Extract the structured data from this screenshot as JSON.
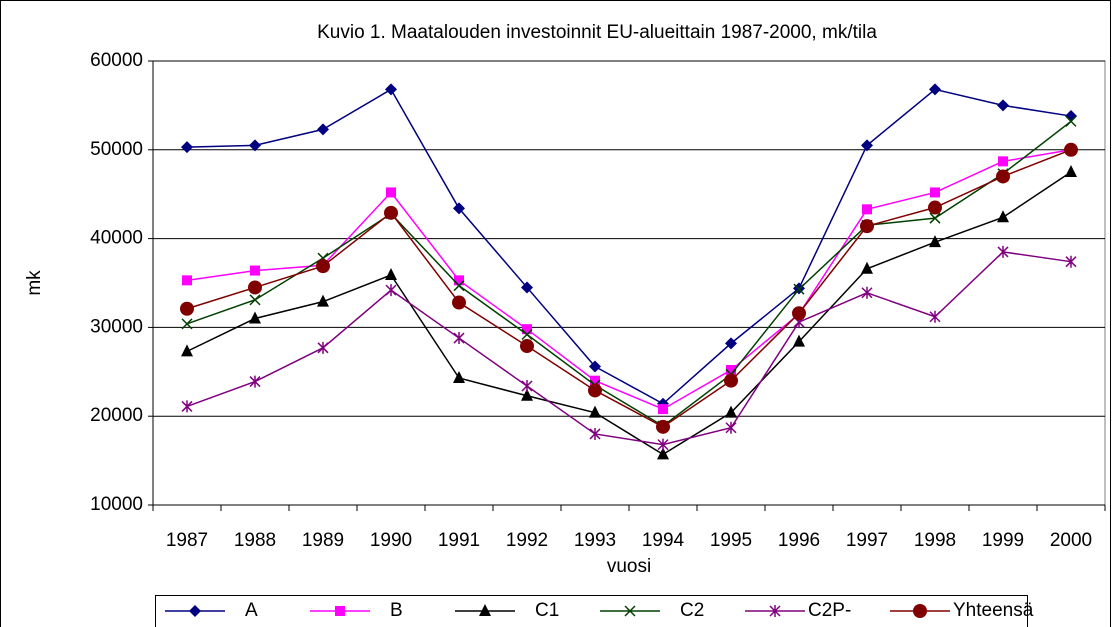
{
  "chart_data": {
    "type": "line",
    "title": "Kuvio 1. Maatalouden investoinnit EU-alueittain 1987-2000, mk/tila",
    "x_label": "vuosi",
    "y_label": "mk",
    "categories": [
      "1987",
      "1988",
      "1989",
      "1990",
      "1991",
      "1992",
      "1993",
      "1994",
      "1995",
      "1996",
      "1997",
      "1998",
      "1999",
      "2000"
    ],
    "series": [
      {
        "name": "A",
        "color": "#000080",
        "marker": "diamond",
        "values": [
          50300,
          50500,
          52300,
          56800,
          43400,
          34500,
          25600,
          21400,
          28200,
          34400,
          50500,
          56800,
          55000,
          53800
        ]
      },
      {
        "name": "B",
        "color": "#ff00ff",
        "marker": "square",
        "values": [
          35300,
          36400,
          37000,
          45200,
          35300,
          29800,
          24000,
          20800,
          25200,
          31500,
          43300,
          45200,
          48700,
          50000
        ]
      },
      {
        "name": "C1",
        "color": "#000000",
        "marker": "triangle",
        "values": [
          27300,
          31000,
          32900,
          35900,
          24300,
          22300,
          20400,
          15700,
          20400,
          28400,
          36600,
          39600,
          42400,
          47500
        ]
      },
      {
        "name": "C2",
        "color": "#004000",
        "marker": "x",
        "values": [
          30400,
          33100,
          37800,
          42800,
          34700,
          29200,
          23500,
          18900,
          24700,
          34300,
          41500,
          42300,
          47300,
          53200
        ]
      },
      {
        "name": "C2P-",
        "color": "#800080",
        "marker": "star",
        "values": [
          21100,
          23900,
          27700,
          34200,
          28800,
          23400,
          18000,
          16800,
          18700,
          30600,
          33900,
          31200,
          38500,
          37400
        ]
      },
      {
        "name": "Yhteensä",
        "color": "#800000",
        "marker": "circle",
        "values": [
          32100,
          34500,
          36900,
          42900,
          32800,
          27900,
          22900,
          18800,
          24000,
          31600,
          41400,
          43500,
          47000,
          50000
        ]
      }
    ],
    "ylim": [
      10000,
      60000
    ],
    "yticks": [
      10000,
      20000,
      30000,
      40000,
      50000,
      60000
    ],
    "grid": true,
    "legend": "bottom"
  }
}
